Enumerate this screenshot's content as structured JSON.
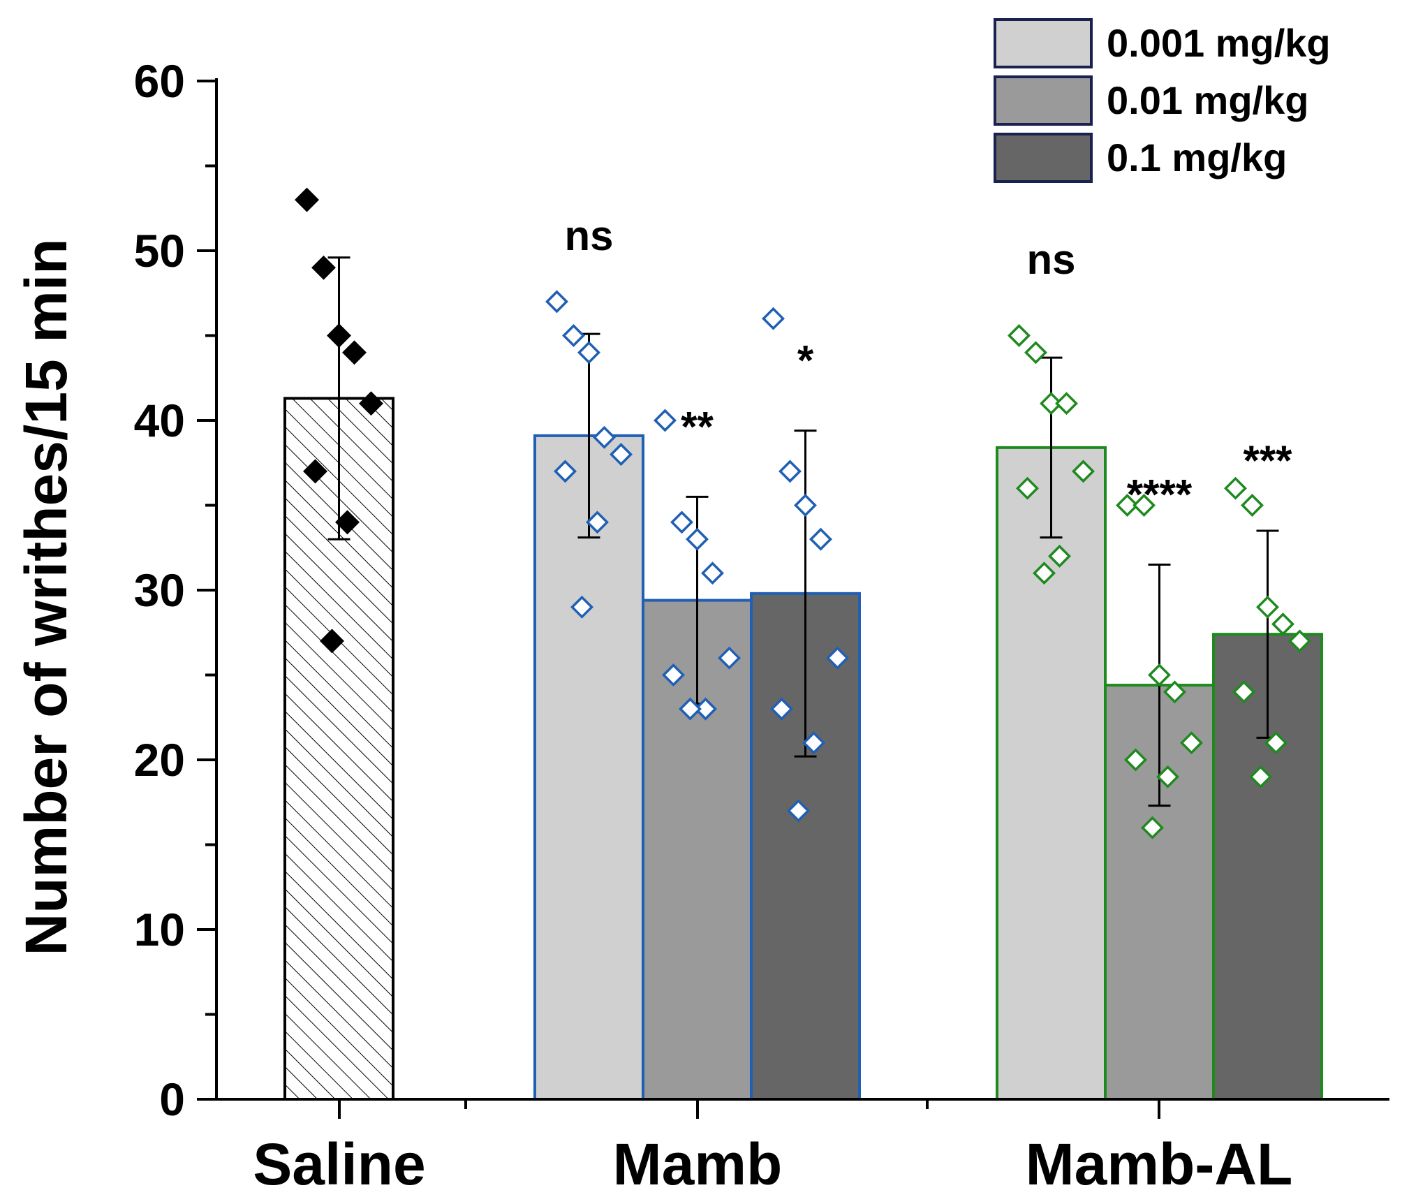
{
  "chart_data": {
    "type": "bar",
    "title": "",
    "xlabel": "",
    "ylabel": "Number of writhes/15 min",
    "ylim": [
      0,
      60
    ],
    "yticks": [
      0,
      10,
      20,
      30,
      40,
      50,
      60
    ],
    "grid": false,
    "legend_position": "top-right",
    "legend": [
      {
        "label": "0.001 mg/kg",
        "color": "#d0d0d0"
      },
      {
        "label": "0.01 mg/kg",
        "color": "#9a9a9a"
      },
      {
        "label": "0.1 mg/kg",
        "color": "#666666"
      }
    ],
    "groups": [
      {
        "name": "Saline",
        "outline_color": "#000000",
        "bars": [
          {
            "dose": "saline",
            "value": 41.3,
            "error": 8.3,
            "fill": "hatched",
            "significance": "",
            "points": [
              53,
              49,
              45,
              44,
              41,
              37,
              34,
              27
            ]
          }
        ]
      },
      {
        "name": "Mamb",
        "outline_color": "#1f5fb4",
        "bars": [
          {
            "dose": "0.001 mg/kg",
            "value": 39.1,
            "error": 6.0,
            "significance": "ns",
            "points": [
              47,
              45,
              44,
              39,
              38,
              37,
              34,
              29
            ]
          },
          {
            "dose": "0.01 mg/kg",
            "value": 29.4,
            "error": 6.1,
            "significance": "**",
            "points": [
              40,
              34,
              33,
              31,
              26,
              25,
              23,
              23
            ]
          },
          {
            "dose": "0.1 mg/kg",
            "value": 29.8,
            "error": 9.6,
            "significance": "*",
            "points": [
              46,
              37,
              35,
              33,
              26,
              23,
              21,
              17
            ]
          }
        ]
      },
      {
        "name": "Mamb-AL",
        "outline_color": "#1e8a1e",
        "bars": [
          {
            "dose": "0.001 mg/kg",
            "value": 38.4,
            "error": 5.3,
            "significance": "ns",
            "points": [
              45,
              44,
              41,
              41,
              37,
              36,
              32,
              31
            ]
          },
          {
            "dose": "0.01 mg/kg",
            "value": 24.4,
            "error": 7.1,
            "significance": "****",
            "points": [
              35,
              35,
              25,
              24,
              21,
              20,
              19,
              16
            ]
          },
          {
            "dose": "0.1 mg/kg",
            "value": 27.4,
            "error": 6.1,
            "significance": "***",
            "points": [
              36,
              35,
              29,
              28,
              27,
              24,
              21,
              19
            ]
          }
        ]
      }
    ]
  }
}
